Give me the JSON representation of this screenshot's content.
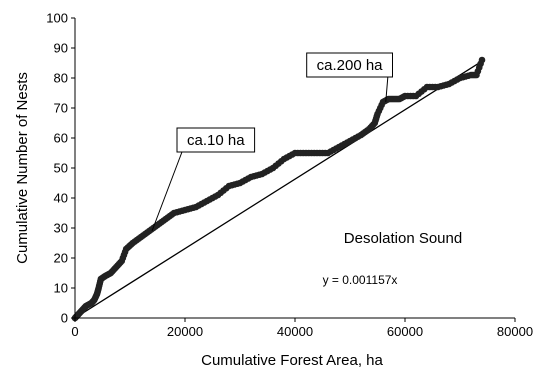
{
  "chart_data": {
    "type": "scatter",
    "title": "",
    "xlabel": "Cumulative Forest Area, ha",
    "ylabel": "Cumulative Number of Nests",
    "xlim": [
      0,
      80000
    ],
    "ylim": [
      0,
      100
    ],
    "x_ticks": [
      "0",
      "20000",
      "40000",
      "60000",
      "80000"
    ],
    "y_ticks": [
      "0",
      "10",
      "20",
      "30",
      "40",
      "50",
      "60",
      "70",
      "80",
      "90",
      "100"
    ],
    "grid": false,
    "legend": "none",
    "marker_color": "#222222",
    "series": [
      {
        "name": "",
        "points": [
          [
            0,
            0
          ],
          [
            500,
            1
          ],
          [
            1000,
            2
          ],
          [
            1500,
            3
          ],
          [
            2000,
            4
          ],
          [
            3000,
            5
          ],
          [
            3500,
            6
          ],
          [
            4000,
            8
          ],
          [
            4300,
            10
          ],
          [
            4700,
            13
          ],
          [
            5500,
            14
          ],
          [
            6500,
            15
          ],
          [
            7500,
            17
          ],
          [
            8500,
            19
          ],
          [
            9300,
            23
          ],
          [
            10500,
            25
          ],
          [
            12000,
            27
          ],
          [
            13500,
            29
          ],
          [
            15000,
            31
          ],
          [
            16500,
            33
          ],
          [
            18000,
            35
          ],
          [
            20000,
            36
          ],
          [
            22000,
            37
          ],
          [
            24000,
            39
          ],
          [
            26000,
            41
          ],
          [
            28000,
            44
          ],
          [
            30000,
            45
          ],
          [
            32000,
            47
          ],
          [
            34000,
            48
          ],
          [
            36000,
            50
          ],
          [
            38000,
            53
          ],
          [
            40000,
            55
          ],
          [
            42000,
            55
          ],
          [
            44000,
            55
          ],
          [
            46000,
            55
          ],
          [
            48000,
            57
          ],
          [
            50000,
            59
          ],
          [
            52000,
            61
          ],
          [
            53500,
            63
          ],
          [
            54500,
            65
          ],
          [
            55000,
            68
          ],
          [
            56000,
            72
          ],
          [
            57000,
            73
          ],
          [
            58000,
            73
          ],
          [
            59000,
            73
          ],
          [
            60000,
            74
          ],
          [
            62000,
            74
          ],
          [
            64000,
            77
          ],
          [
            66000,
            77
          ],
          [
            68000,
            78
          ],
          [
            70000,
            80
          ],
          [
            72000,
            81
          ],
          [
            73000,
            81
          ],
          [
            74000,
            86
          ]
        ]
      }
    ],
    "trendline": {
      "equation": "y = 0.001157x",
      "slope": 0.001157,
      "x_range": [
        0,
        74000
      ]
    },
    "annotations": [
      {
        "text": "ca.10 ha",
        "box_at": [
          20000,
          58
        ],
        "points_to": [
          14000,
          29
        ]
      },
      {
        "text": "ca.200 ha",
        "box_at": [
          57000,
          83
        ],
        "points_to": [
          56500,
          72
        ]
      }
    ],
    "label_text": "Desolation Sound"
  }
}
